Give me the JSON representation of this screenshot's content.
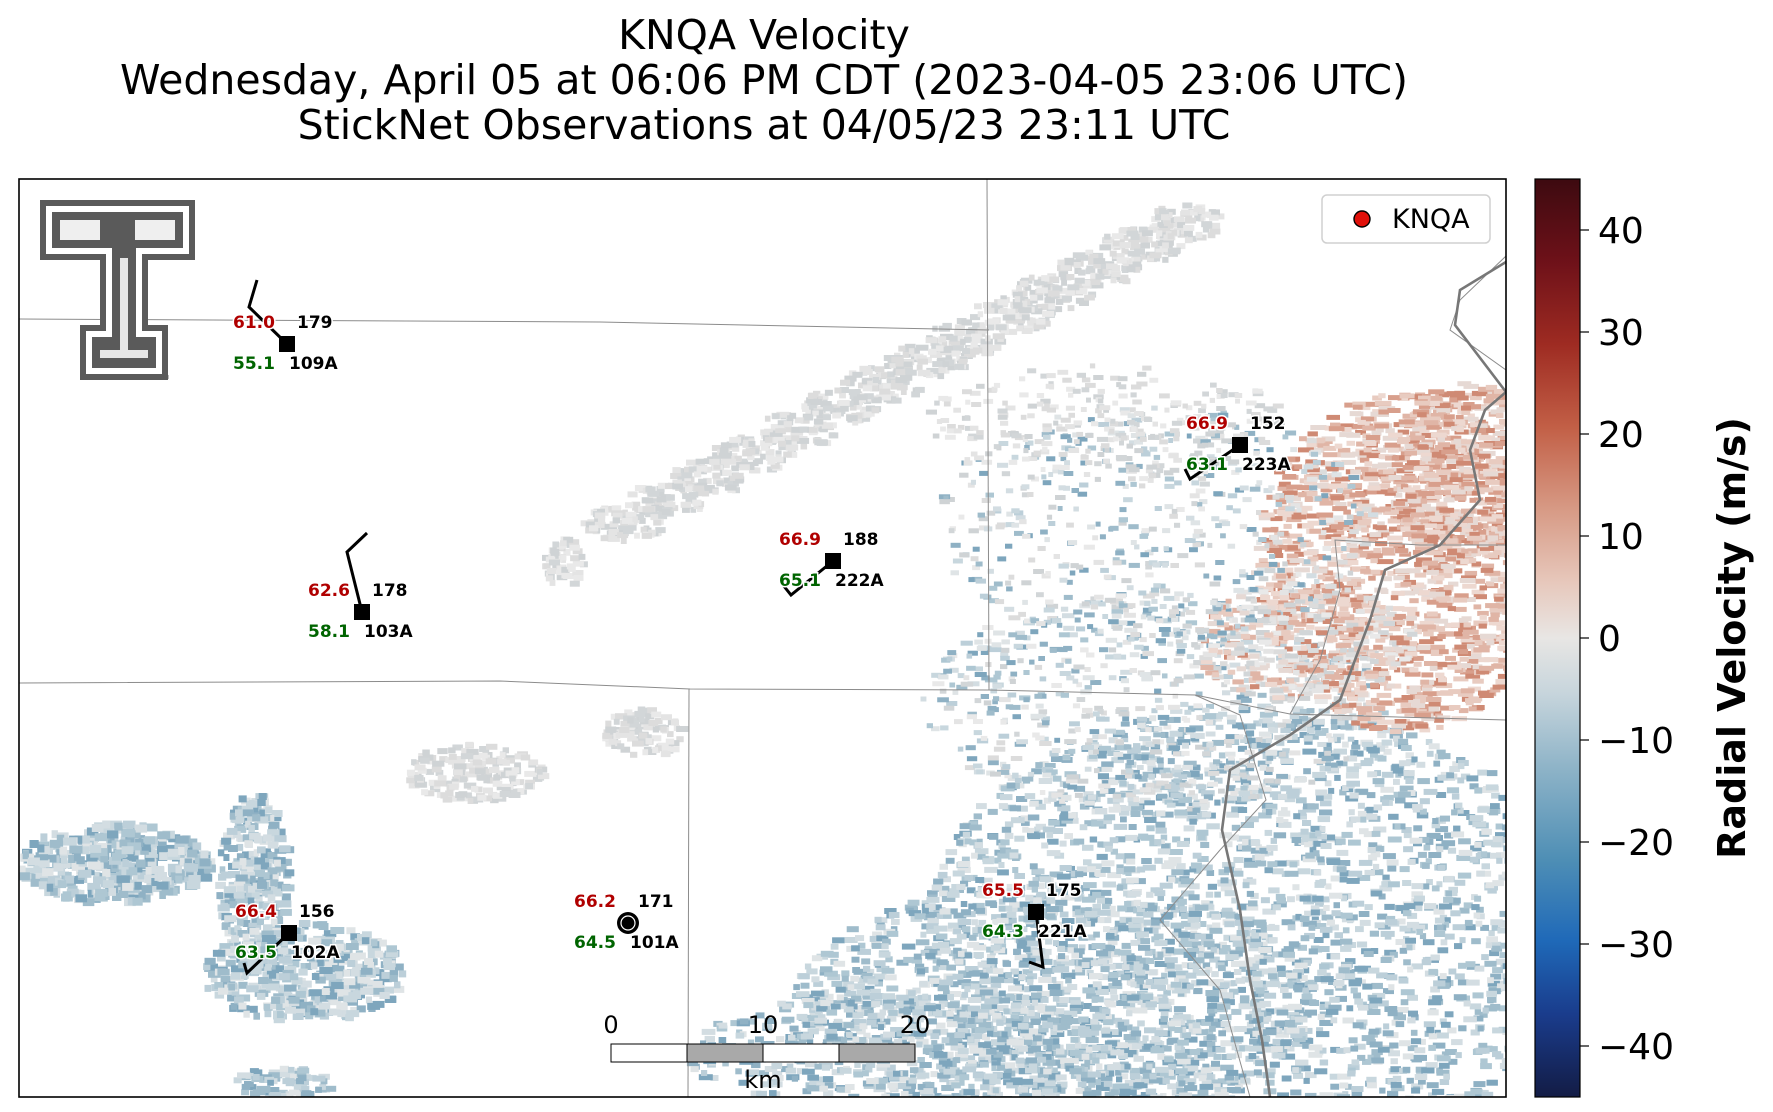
{
  "title": {
    "line1": "KNQA Velocity",
    "line2": "Wednesday, April 05 at 06:06 PM CDT (2023-04-05 23:06 UTC)",
    "line3": "StickNet Observations at 04/05/23 23:11 UTC"
  },
  "legend": {
    "label": "KNQA",
    "marker_color": "#e0100a"
  },
  "colorbar": {
    "label": "Radial Velocity (m/s)",
    "range": [
      -45,
      45
    ],
    "ticks": [
      "40",
      "30",
      "20",
      "10",
      "0",
      "−10",
      "−20",
      "−30",
      "−40"
    ],
    "colors": [
      "#131c45",
      "#1a3c8c",
      "#1f69b8",
      "#4f8fb5",
      "#8fb4c8",
      "#c7d5dc",
      "#e8e6e4",
      "#e7c8bc",
      "#d79a85",
      "#c25f46",
      "#9e2b22",
      "#6e1119",
      "#3d0a10"
    ]
  },
  "scalebar": {
    "ticks": [
      "0",
      "10",
      "20"
    ],
    "unit": "km"
  },
  "stations": [
    {
      "id": "109A",
      "temp": "61.0",
      "dew": "55.1",
      "dir": "179"
    },
    {
      "id": "103A",
      "temp": "62.6",
      "dew": "58.1",
      "dir": "178"
    },
    {
      "id": "222A",
      "temp": "66.9",
      "dew": "65.1",
      "dir": "188"
    },
    {
      "id": "223A",
      "temp": "66.9",
      "dew": "63.1",
      "dir": "152"
    },
    {
      "id": "102A",
      "temp": "66.4",
      "dew": "63.5",
      "dir": "156"
    },
    {
      "id": "101A",
      "temp": "66.2",
      "dew": "64.5",
      "dir": "171"
    },
    {
      "id": "221A",
      "temp": "65.5",
      "dew": "64.3",
      "dir": "175"
    }
  ],
  "colors": {
    "temp": "#b00000",
    "dew": "#006400",
    "logo": "#5a5a5a"
  },
  "logo": {
    "name": "texas-tech-double-t-logo"
  }
}
